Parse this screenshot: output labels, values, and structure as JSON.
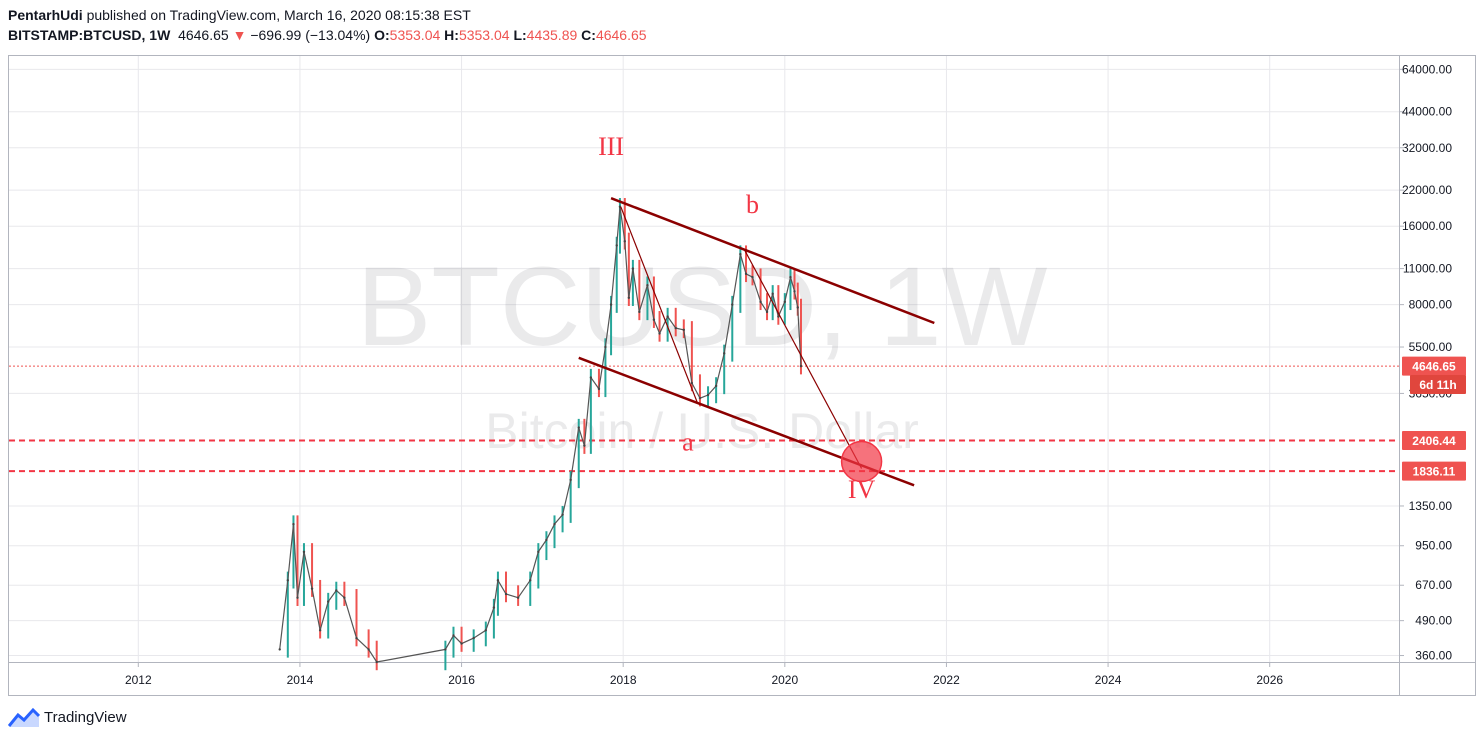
{
  "header": {
    "author": "PentarhUdi",
    "published_text": "published on TradingView.com, March 16, 2020 08:15:38 EST",
    "symbol": "BITSTAMP:BTCUSD",
    "interval": "1W",
    "price": "4646.65",
    "change_arrow": "▼",
    "change": "−696.99 (−13.04%)",
    "open_label": "O:",
    "open": "5353.04",
    "high_label": "H:",
    "high": "5353.04",
    "low_label": "L:",
    "low": "4435.89",
    "close_label": "C:",
    "close": "4646.65"
  },
  "footer": {
    "brand": "TradingView"
  },
  "colors": {
    "down": "#ef5350",
    "channel": "#8b0000",
    "grid": "#e8e8ec",
    "axis": "#b2b5be"
  },
  "chart_data": {
    "type": "line",
    "watermark_title": "BTCUSD, 1W",
    "watermark_subtitle": "Bitcoin / U.S. Dollar",
    "x_ticks": [
      "2012",
      "2014",
      "2016",
      "2018",
      "2020",
      "2022",
      "2024",
      "2026"
    ],
    "x_range": [
      2010.4,
      2027.6
    ],
    "y_scale": "log",
    "y_range": [
      340,
      72000
    ],
    "y_ticks": [
      "64000.00",
      "44000.00",
      "32000.00",
      "22000.00",
      "16000.00",
      "11000.00",
      "8000.00",
      "5500.00",
      "3650.00",
      "1350.00",
      "950.00",
      "670.00",
      "490.00",
      "360.00"
    ],
    "price_labels": [
      {
        "text": "4646.65",
        "value": 4646.65,
        "style": "dotted"
      },
      {
        "text": "6d 11h",
        "value": 3950,
        "style": "countdown"
      },
      {
        "text": "2406.44",
        "value": 2406.44,
        "style": "dashed"
      },
      {
        "text": "1836.11",
        "value": 1836.11,
        "style": "dashed"
      }
    ],
    "series": [
      {
        "values": [
          [
            2013.75,
            380
          ],
          [
            2013.85,
            700
          ],
          [
            2013.92,
            1150
          ],
          [
            2013.97,
            600
          ],
          [
            2014.05,
            900
          ],
          [
            2014.15,
            650
          ],
          [
            2014.25,
            450
          ],
          [
            2014.35,
            580
          ],
          [
            2014.45,
            640
          ],
          [
            2014.55,
            600
          ],
          [
            2014.7,
            420
          ],
          [
            2014.85,
            380
          ],
          [
            2014.95,
            340
          ],
          [
            2015.8,
            380
          ],
          [
            2015.9,
            430
          ],
          [
            2016.0,
            400
          ],
          [
            2016.15,
            420
          ],
          [
            2016.3,
            450
          ],
          [
            2016.4,
            550
          ],
          [
            2016.45,
            700
          ],
          [
            2016.55,
            620
          ],
          [
            2016.7,
            600
          ],
          [
            2016.85,
            700
          ],
          [
            2016.95,
            900
          ],
          [
            2017.05,
            1000
          ],
          [
            2017.15,
            1150
          ],
          [
            2017.25,
            1250
          ],
          [
            2017.35,
            1700
          ],
          [
            2017.45,
            2700
          ],
          [
            2017.52,
            2300
          ],
          [
            2017.6,
            4200
          ],
          [
            2017.7,
            3800
          ],
          [
            2017.78,
            5500
          ],
          [
            2017.85,
            8000
          ],
          [
            2017.92,
            13500
          ],
          [
            2017.96,
            19000
          ],
          [
            2018.02,
            14000
          ],
          [
            2018.07,
            8500
          ],
          [
            2018.12,
            11000
          ],
          [
            2018.2,
            7500
          ],
          [
            2018.3,
            9500
          ],
          [
            2018.38,
            7000
          ],
          [
            2018.45,
            6200
          ],
          [
            2018.55,
            7200
          ],
          [
            2018.65,
            6500
          ],
          [
            2018.75,
            6400
          ],
          [
            2018.85,
            4000
          ],
          [
            2018.95,
            3500
          ],
          [
            2019.05,
            3600
          ],
          [
            2019.15,
            3900
          ],
          [
            2019.25,
            5200
          ],
          [
            2019.35,
            8000
          ],
          [
            2019.45,
            12500
          ],
          [
            2019.52,
            10500
          ],
          [
            2019.6,
            10200
          ],
          [
            2019.7,
            8200
          ],
          [
            2019.78,
            7500
          ],
          [
            2019.85,
            8800
          ],
          [
            2019.92,
            7200
          ],
          [
            2020.0,
            8200
          ],
          [
            2020.07,
            10200
          ],
          [
            2020.12,
            9000
          ],
          [
            2020.16,
            7800
          ],
          [
            2020.2,
            4646
          ]
        ]
      }
    ],
    "annotations": [
      {
        "text": "III",
        "x": 2017.85,
        "y": 30000
      },
      {
        "text": "b",
        "x": 2019.6,
        "y": 18000
      },
      {
        "text": "a",
        "x": 2018.8,
        "y": 2200
      },
      {
        "text": "IV",
        "x": 2020.95,
        "y": 1450
      }
    ],
    "channel_lines": [
      {
        "from": [
          2017.85,
          20500
        ],
        "to": [
          2021.85,
          6800
        ]
      },
      {
        "from": [
          2017.45,
          5000
        ],
        "to": [
          2021.6,
          1620
        ]
      }
    ],
    "wave_lines": [
      {
        "from": [
          2017.97,
          19000
        ],
        "to": [
          2018.92,
          3350
        ]
      },
      {
        "from": [
          2019.5,
          13000
        ],
        "to": [
          2020.95,
          1880
        ]
      }
    ],
    "target_circle": {
      "x": 2020.95,
      "y": 2000
    }
  }
}
